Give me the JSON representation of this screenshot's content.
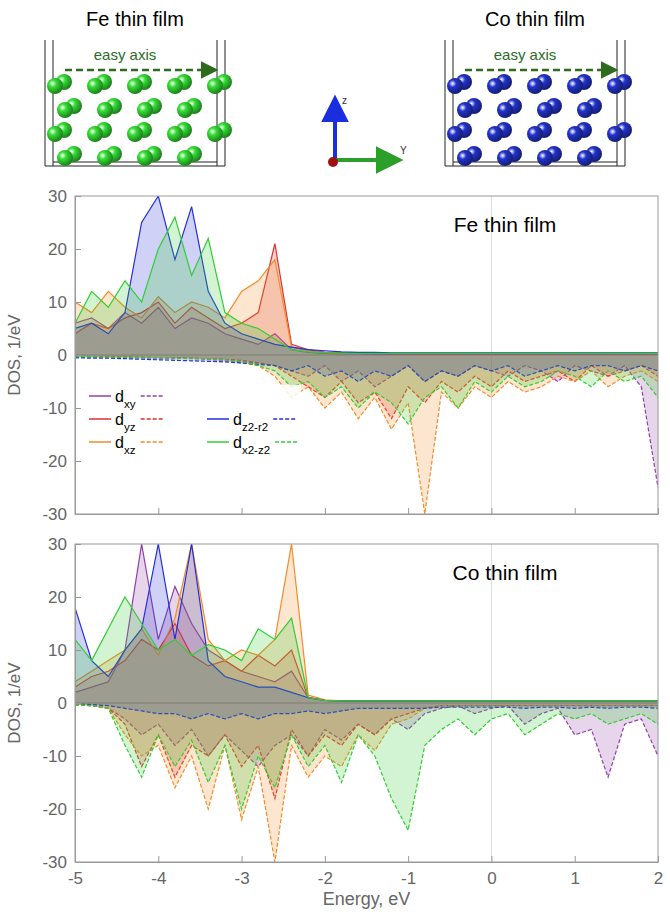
{
  "structures": [
    {
      "title": "Fe thin film",
      "axis_label": "easy axis",
      "color": "#33dd33"
    },
    {
      "title": "Co thin film",
      "axis_label": "easy axis",
      "color": "#2233cc"
    }
  ],
  "axes_icon": [
    "z",
    "Y"
  ],
  "chart_data": [
    {
      "type": "area",
      "title": "Fe thin film",
      "y_label": "DOS, 1/eV",
      "x": [
        -5,
        -4.8,
        -4.6,
        -4.4,
        -4.2,
        -4,
        -3.8,
        -3.6,
        -3.4,
        -3.2,
        -3,
        -2.8,
        -2.6,
        -2.4,
        -2.2,
        -2,
        -1.8,
        -1.6,
        -1.4,
        -1.2,
        -1,
        -0.8,
        -0.6,
        -0.4,
        -0.2,
        0,
        0.2,
        0.4,
        0.6,
        0.8,
        1,
        1.2,
        1.4,
        1.6,
        1.8,
        2
      ],
      "xlim": [
        -5,
        2
      ],
      "xticks": [
        -5,
        -4,
        -3,
        -2,
        -1,
        0,
        1,
        2
      ],
      "ylim": [
        -30,
        30
      ],
      "yticks": [
        -30,
        -20,
        -10,
        0,
        10,
        20,
        30
      ],
      "tick_labels": "y",
      "legend": "lower left",
      "series": [
        {
          "name": "dxy",
          "color": "#9040a8",
          "line_style": "solid",
          "values": [
            6,
            7,
            5,
            8,
            6,
            9,
            5,
            7,
            6,
            4,
            3,
            2,
            4,
            1,
            0.5,
            0.3,
            0.2,
            0.2,
            0.1,
            0.1,
            0.1,
            0.1,
            0.1,
            0.1,
            0.1,
            0.1,
            0.1,
            0.1,
            0.1,
            0.1,
            0.1,
            0.1,
            0.1,
            0.2,
            0.1,
            0.2
          ]
        },
        {
          "name": "dxy",
          "color": "#9040a8",
          "line_style": "dashed",
          "values": [
            -0.3,
            -0.3,
            -0.4,
            -0.4,
            -0.5,
            -0.5,
            -0.6,
            -0.6,
            -0.8,
            -1,
            -1.2,
            -1.5,
            -2,
            -3,
            -4,
            -2,
            -5,
            -3,
            -6,
            -4,
            -2,
            -5,
            -3,
            -4,
            -2,
            -3,
            -4,
            -2,
            -3,
            -5,
            -2,
            -3,
            -4,
            -2,
            -6,
            -25
          ]
        },
        {
          "name": "dyz",
          "color": "#e0302e",
          "line_style": "solid",
          "values": [
            4,
            6,
            5,
            7,
            8,
            10,
            6,
            9,
            7,
            5,
            6,
            8,
            21,
            2,
            1,
            0.5,
            0.4,
            0.3,
            0.3,
            0.2,
            0.2,
            0.2,
            0.2,
            0.2,
            0.2,
            0.2,
            0.2,
            0.2,
            0.2,
            0.2,
            0.2,
            0.2,
            0.2,
            0.2,
            0.2,
            0.2
          ]
        },
        {
          "name": "dyz",
          "color": "#e0302e",
          "line_style": "dashed",
          "values": [
            -0.3,
            -0.3,
            -0.3,
            -0.4,
            -0.4,
            -0.5,
            -0.5,
            -0.6,
            -0.7,
            -0.8,
            -1,
            -1.5,
            -2,
            -4,
            -6,
            -8,
            -5,
            -9,
            -7,
            -12,
            -6,
            -9,
            -5,
            -7,
            -4,
            -6,
            -3,
            -5,
            -4,
            -3,
            -5,
            -2,
            -4,
            -3,
            -2,
            -4
          ]
        },
        {
          "name": "dxz",
          "color": "#f28c28",
          "line_style": "solid",
          "values": [
            10,
            8,
            12,
            9,
            7,
            11,
            8,
            10,
            9,
            7,
            12,
            14,
            18,
            1.5,
            0.8,
            0.5,
            0.4,
            0.3,
            0.3,
            0.3,
            0.3,
            0.3,
            0.3,
            0.3,
            0.3,
            0.3,
            0.3,
            0.3,
            0.3,
            0.3,
            0.3,
            0.3,
            0.3,
            0.3,
            0.3,
            0.3
          ]
        },
        {
          "name": "dxz",
          "color": "#f28c28",
          "line_style": "dashed",
          "values": [
            -0.4,
            -0.4,
            -0.5,
            -0.5,
            -0.5,
            -0.6,
            -0.6,
            -0.7,
            -0.8,
            -1,
            -1.5,
            -2,
            -4,
            -8,
            -6,
            -10,
            -7,
            -12,
            -8,
            -14,
            -9,
            -30,
            -7,
            -10,
            -6,
            -8,
            -5,
            -7,
            -6,
            -4,
            -5,
            -3,
            -6,
            -4,
            -3,
            -5
          ]
        },
        {
          "name": "dz2-r2",
          "color": "#2430d8",
          "line_style": "solid",
          "values": [
            5,
            6,
            4,
            8,
            25,
            30,
            18,
            28,
            12,
            6,
            4,
            3,
            2,
            1.5,
            1,
            0.8,
            0.6,
            0.5,
            0.5,
            0.4,
            0.4,
            0.4,
            0.4,
            0.4,
            0.4,
            0.4,
            0.4,
            0.4,
            0.4,
            0.4,
            0.4,
            0.4,
            0.4,
            0.4,
            0.4,
            0.4
          ]
        },
        {
          "name": "dz2-r2",
          "color": "#2430d8",
          "line_style": "dashed",
          "values": [
            -0.5,
            -0.6,
            -0.6,
            -0.7,
            -0.8,
            -0.9,
            -1,
            -1.1,
            -1.2,
            -1.3,
            -1.5,
            -1.8,
            -2,
            -3,
            -2,
            -4,
            -3,
            -5,
            -3,
            -4,
            -2,
            -5,
            -3,
            -4,
            -2,
            -3,
            -2,
            -4,
            -3,
            -2,
            -3,
            -2,
            -2,
            -3,
            -2,
            -3
          ]
        },
        {
          "name": "dx2-z2",
          "color": "#33cc33",
          "line_style": "solid",
          "values": [
            6,
            12,
            9,
            14,
            10,
            20,
            26,
            15,
            22,
            8,
            6,
            5,
            3,
            1,
            0.6,
            0.4,
            0.3,
            0.3,
            0.3,
            0.3,
            0.3,
            0.3,
            0.3,
            0.3,
            0.3,
            0.3,
            0.3,
            0.3,
            0.3,
            0.3,
            0.3,
            0.3,
            0.3,
            0.3,
            0.3,
            0.3
          ]
        },
        {
          "name": "dx2-z2",
          "color": "#33cc33",
          "line_style": "dashed",
          "values": [
            -0.3,
            -0.3,
            -0.4,
            -0.4,
            -0.5,
            -0.5,
            -0.6,
            -0.6,
            -0.7,
            -0.9,
            -1.2,
            -2,
            -3,
            -6,
            -5,
            -8,
            -6,
            -10,
            -7,
            -9,
            -13,
            -8,
            -6,
            -10,
            -5,
            -7,
            -4,
            -6,
            -5,
            -3,
            -4,
            -6,
            -3,
            -5,
            -4,
            -8
          ]
        }
      ]
    },
    {
      "type": "area",
      "title": "Co thin film",
      "x_label": "Energy, eV",
      "y_label": "DOS, 1/eV",
      "x": [
        -5,
        -4.8,
        -4.6,
        -4.4,
        -4.2,
        -4,
        -3.8,
        -3.6,
        -3.4,
        -3.2,
        -3,
        -2.8,
        -2.6,
        -2.4,
        -2.2,
        -2,
        -1.8,
        -1.6,
        -1.4,
        -1.2,
        -1,
        -0.8,
        -0.6,
        -0.4,
        -0.2,
        0,
        0.2,
        0.4,
        0.6,
        0.8,
        1,
        1.2,
        1.4,
        1.6,
        1.8,
        2
      ],
      "xlim": [
        -5,
        2
      ],
      "xticks": [
        -5,
        -4,
        -3,
        -2,
        -1,
        0,
        1,
        2
      ],
      "ylim": [
        -30,
        30
      ],
      "yticks": [
        -30,
        -20,
        -10,
        0,
        10,
        20,
        30
      ],
      "series": [
        {
          "color": "#9040a8",
          "line_style": "solid",
          "values": [
            2,
            3,
            4,
            10,
            30,
            12,
            22,
            15,
            10,
            8,
            6,
            5,
            4,
            6,
            1,
            0.5,
            0.4,
            0.3,
            0.3,
            0.3,
            0.3,
            0.3,
            0.3,
            0.3,
            0.3,
            0.3,
            0.3,
            0.3,
            0.3,
            0.3,
            0.3,
            0.3,
            0.3,
            0.3,
            0.3,
            0.3
          ]
        },
        {
          "color": "#9040a8",
          "line_style": "dashed",
          "values": [
            -0.3,
            -0.5,
            -1,
            -3,
            -6,
            -4,
            -8,
            -5,
            -10,
            -6,
            -9,
            -12,
            -8,
            -6,
            -10,
            -5,
            -7,
            -4,
            -6,
            -3,
            -5,
            -2,
            -1,
            -0.5,
            -2,
            -1,
            -0.5,
            -4,
            -2,
            -1,
            -6,
            -5,
            -14,
            -4,
            -3,
            -10
          ]
        },
        {
          "color": "#e0302e",
          "line_style": "solid",
          "values": [
            3,
            5,
            6,
            8,
            12,
            10,
            15,
            9,
            7,
            8,
            6,
            9,
            7,
            10,
            1,
            0.5,
            0.4,
            0.3,
            0.3,
            0.3,
            0.3,
            0.3,
            0.3,
            0.3,
            0.3,
            0.3,
            0.3,
            0.3,
            0.3,
            0.3,
            0.3,
            0.3,
            0.3,
            0.3,
            0.3,
            0.3
          ]
        },
        {
          "color": "#e0302e",
          "line_style": "dashed",
          "values": [
            -0.3,
            -0.5,
            -1,
            -4,
            -12,
            -6,
            -14,
            -8,
            -10,
            -6,
            -12,
            -8,
            -18,
            -5,
            -10,
            -6,
            -8,
            -4,
            -6,
            -3,
            -2,
            -1,
            -0.5,
            -0.5,
            -0.5,
            -0.5,
            -0.5,
            -0.5,
            -0.5,
            -0.5,
            -0.5,
            -0.5,
            -0.5,
            -0.5,
            -0.5,
            -0.5
          ]
        },
        {
          "color": "#f28c28",
          "line_style": "solid",
          "values": [
            4,
            6,
            8,
            10,
            14,
            9,
            16,
            30,
            12,
            8,
            10,
            9,
            12,
            30,
            1.5,
            0.6,
            0.4,
            0.4,
            0.4,
            0.4,
            0.4,
            0.4,
            0.4,
            0.4,
            0.4,
            0.4,
            0.4,
            0.4,
            0.4,
            0.4,
            0.4,
            0.4,
            0.4,
            0.4,
            0.4,
            0.4
          ]
        },
        {
          "color": "#f28c28",
          "line_style": "dashed",
          "values": [
            -0.3,
            -0.5,
            -1,
            -6,
            -10,
            -8,
            -16,
            -10,
            -20,
            -8,
            -22,
            -12,
            -30,
            -8,
            -14,
            -10,
            -12,
            -6,
            -9,
            -4,
            -3,
            -1,
            -0.5,
            -0.5,
            -0.5,
            -0.5,
            -0.5,
            -0.5,
            -0.5,
            -0.5,
            -0.5,
            -0.5,
            -0.5,
            -0.5,
            -0.5,
            -0.5
          ]
        },
        {
          "color": "#2430d8",
          "line_style": "solid",
          "values": [
            18,
            8,
            5,
            10,
            14,
            30,
            12,
            30,
            8,
            5,
            4,
            3,
            3,
            2,
            1,
            0.5,
            0.4,
            0.4,
            0.4,
            0.4,
            0.4,
            0.4,
            0.4,
            0.4,
            0.4,
            0.4,
            0.4,
            0.4,
            0.4,
            0.4,
            0.4,
            0.4,
            0.4,
            0.4,
            0.4,
            0.4
          ]
        },
        {
          "color": "#2430d8",
          "line_style": "dashed",
          "values": [
            -0.2,
            -0.3,
            -0.5,
            -1,
            -1.5,
            -2,
            -2,
            -3,
            -2,
            -3,
            -2,
            -3,
            -2,
            -2,
            -1.5,
            -2,
            -1.5,
            -1,
            -1,
            -1,
            -1,
            -1,
            -0.8,
            -0.8,
            -0.8,
            -0.8,
            -0.8,
            -1,
            -0.8,
            -0.8,
            -1,
            -0.8,
            -1,
            -0.8,
            -0.8,
            -1
          ]
        },
        {
          "color": "#33cc33",
          "line_style": "solid",
          "values": [
            12,
            8,
            14,
            20,
            15,
            10,
            12,
            9,
            11,
            10,
            8,
            14,
            12,
            16,
            1,
            0.5,
            0.4,
            0.4,
            0.4,
            0.4,
            0.4,
            0.4,
            0.4,
            0.4,
            0.4,
            0.4,
            0.4,
            0.4,
            0.4,
            0.4,
            0.4,
            0.4,
            0.4,
            0.4,
            0.4,
            0.4
          ]
        },
        {
          "color": "#33cc33",
          "line_style": "dashed",
          "values": [
            -0.3,
            -0.5,
            -1,
            -8,
            -14,
            -6,
            -12,
            -7,
            -15,
            -8,
            -20,
            -10,
            -16,
            -6,
            -12,
            -8,
            -15,
            -6,
            -10,
            -18,
            -24,
            -8,
            -5,
            -3,
            -6,
            -3,
            -2,
            -6,
            -4,
            -2,
            -3,
            -2,
            -4,
            -3,
            -2,
            -4
          ]
        }
      ]
    }
  ]
}
